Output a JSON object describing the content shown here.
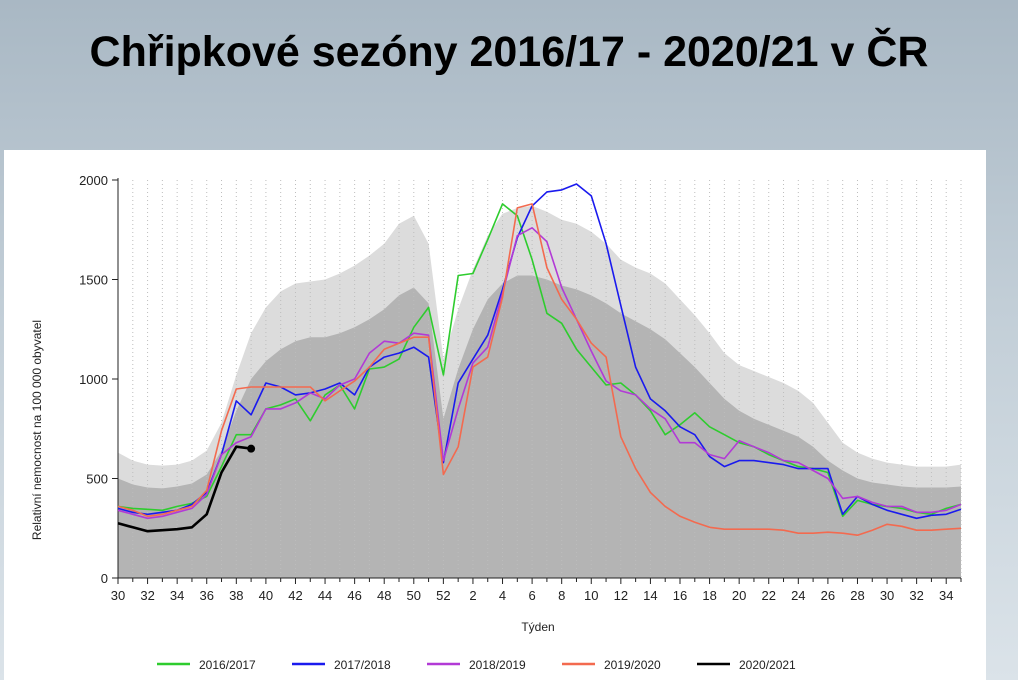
{
  "title": "Chřipkové sezóny 2016/17 - 2020/21 v ČR",
  "chart_data": {
    "type": "line",
    "xlabel": "Týden",
    "ylabel": "Relativní nemocnost na 100 000 obyvatel",
    "ylim": [
      0,
      2000
    ],
    "yticks": [
      0,
      500,
      1000,
      1500,
      2000
    ],
    "x_weeks": [
      30,
      31,
      32,
      33,
      34,
      35,
      36,
      37,
      38,
      39,
      40,
      41,
      42,
      43,
      44,
      45,
      46,
      47,
      48,
      49,
      50,
      51,
      52,
      1,
      2,
      3,
      4,
      5,
      6,
      7,
      8,
      9,
      10,
      11,
      12,
      13,
      14,
      15,
      16,
      17,
      18,
      19,
      20,
      21,
      22,
      23,
      24,
      25,
      26,
      27,
      28,
      29,
      30,
      31,
      32,
      33,
      34,
      35
    ],
    "x_tick_labels": [
      "30",
      "32",
      "34",
      "36",
      "38",
      "40",
      "42",
      "44",
      "46",
      "48",
      "50",
      "52",
      "2",
      "4",
      "6",
      "8",
      "10",
      "12",
      "14",
      "16",
      "18",
      "20",
      "22",
      "24",
      "26",
      "28",
      "30",
      "32",
      "34"
    ],
    "grid": "vertical dotted",
    "legend_position": "bottom",
    "bands": {
      "upper": [
        630,
        590,
        570,
        565,
        570,
        590,
        640,
        780,
        1020,
        1230,
        1360,
        1440,
        1480,
        1490,
        1500,
        1530,
        1570,
        1620,
        1680,
        1780,
        1820,
        1680,
        1100,
        1350,
        1550,
        1720,
        1830,
        1860,
        1870,
        1840,
        1800,
        1780,
        1740,
        1680,
        1600,
        1560,
        1530,
        1480,
        1400,
        1320,
        1230,
        1130,
        1070,
        1040,
        1010,
        980,
        940,
        880,
        780,
        680,
        630,
        600,
        580,
        570,
        560,
        560,
        560,
        570
      ],
      "lower": [
        500,
        470,
        455,
        450,
        460,
        475,
        520,
        640,
        840,
        1000,
        1090,
        1150,
        1190,
        1210,
        1210,
        1230,
        1260,
        1300,
        1350,
        1420,
        1460,
        1380,
        800,
        1050,
        1250,
        1400,
        1480,
        1520,
        1520,
        1500,
        1470,
        1450,
        1420,
        1380,
        1330,
        1290,
        1250,
        1200,
        1130,
        1060,
        980,
        900,
        840,
        800,
        770,
        740,
        710,
        660,
        590,
        540,
        500,
        480,
        470,
        460,
        455,
        455,
        455,
        460
      ]
    },
    "series": [
      {
        "name": "2016/2017",
        "color": "#2ecc2e",
        "values": [
          360,
          350,
          345,
          340,
          360,
          375,
          410,
          560,
          720,
          720,
          850,
          870,
          900,
          790,
          920,
          970,
          850,
          1050,
          1060,
          1100,
          1260,
          1360,
          1020,
          1520,
          1530,
          1700,
          1880,
          1820,
          1600,
          1330,
          1280,
          1150,
          1060,
          970,
          980,
          920,
          840,
          720,
          770,
          830,
          760,
          720,
          680,
          660,
          620,
          590,
          560,
          550,
          530,
          310,
          390,
          370,
          360,
          350,
          330,
          320,
          350,
          370
        ]
      },
      {
        "name": "2017/2018",
        "color": "#1a1aee",
        "values": [
          350,
          330,
          320,
          330,
          340,
          370,
          430,
          620,
          890,
          820,
          980,
          960,
          920,
          930,
          950,
          980,
          920,
          1060,
          1110,
          1130,
          1160,
          1110,
          580,
          980,
          1100,
          1220,
          1450,
          1710,
          1870,
          1940,
          1950,
          1980,
          1920,
          1680,
          1370,
          1060,
          900,
          840,
          760,
          720,
          610,
          560,
          590,
          590,
          580,
          570,
          550,
          550,
          550,
          320,
          410,
          370,
          340,
          320,
          300,
          315,
          320,
          345
        ]
      },
      {
        "name": "2018/2019",
        "color": "#b23ad6",
        "values": [
          340,
          320,
          300,
          310,
          330,
          350,
          420,
          620,
          680,
          710,
          850,
          850,
          880,
          930,
          900,
          970,
          1000,
          1130,
          1190,
          1180,
          1230,
          1220,
          590,
          850,
          1080,
          1160,
          1430,
          1720,
          1760,
          1690,
          1460,
          1300,
          1140,
          990,
          940,
          920,
          850,
          800,
          680,
          680,
          620,
          600,
          690,
          660,
          630,
          590,
          580,
          540,
          500,
          400,
          410,
          380,
          360,
          360,
          330,
          330,
          340,
          370
        ]
      },
      {
        "name": "2019/2020",
        "color": "#f36a4f",
        "values": [
          360,
          340,
          310,
          320,
          340,
          360,
          440,
          740,
          950,
          960,
          960,
          960,
          960,
          960,
          890,
          940,
          990,
          1060,
          1150,
          1180,
          1210,
          1210,
          520,
          660,
          1060,
          1110,
          1410,
          1860,
          1880,
          1560,
          1400,
          1300,
          1180,
          1110,
          710,
          550,
          430,
          360,
          310,
          280,
          255,
          245,
          245,
          245,
          245,
          240,
          225,
          225,
          230,
          225,
          215,
          240,
          270,
          260,
          240,
          240,
          245,
          250
        ]
      },
      {
        "name": "2020/2021",
        "color": "#000000",
        "values": [
          275,
          255,
          235,
          240,
          245,
          255,
          320,
          530,
          660,
          650
        ]
      }
    ]
  }
}
